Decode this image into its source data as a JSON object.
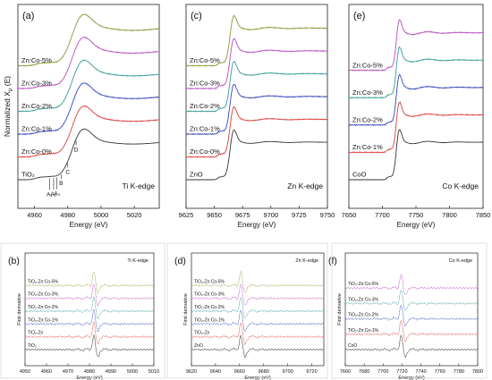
{
  "chart_data": [
    {
      "type": "line",
      "panel": "(a)",
      "edge_label": "Ti K-edge",
      "xlabel": "Energy (eV)",
      "ylabel": "Normalized X",
      "ylabel_sub": "μ",
      "ylabel_tail": "(E)",
      "xlim": [
        4950,
        5035
      ],
      "xticks": [
        4960,
        4980,
        5000,
        5020
      ],
      "edge": 4983,
      "spread": 6,
      "wiggle": 0.55,
      "step_from_bottom": 0.62,
      "peak_labels": [
        {
          "text": "A₁",
          "x": 4969,
          "series": "TiO₂"
        },
        {
          "text": "A₂",
          "x": 4971.5,
          "series": "TiO₂"
        },
        {
          "text": "A₃",
          "x": 4973.5,
          "series": "TiO₂"
        },
        {
          "text": "B",
          "x": 4976,
          "series": "TiO₂"
        },
        {
          "text": "C",
          "x": 4980,
          "series": "TiO₂"
        },
        {
          "text": "D",
          "x": 4985,
          "series": "TiO₂"
        }
      ],
      "series": [
        {
          "name": "TiO₂",
          "color": "#333333"
        },
        {
          "name": "Zn:Co-0%",
          "color": "#d8413d"
        },
        {
          "name": "Zn:Co-1%",
          "color": "#3447b7"
        },
        {
          "name": "Zn:Co-2%",
          "color": "#3a9a9a"
        },
        {
          "name": "Zn:Co-3%",
          "color": "#b84cc0"
        },
        {
          "name": "Zn:Co-5%",
          "color": "#8f9636"
        }
      ]
    },
    {
      "type": "line",
      "panel": "(c)",
      "edge_label": "Zn K-edge",
      "xlabel": "Energy (eV)",
      "xlim": [
        9625,
        9750
      ],
      "xticks": [
        9625,
        9650,
        9675,
        9700,
        9725,
        9750
      ],
      "edge": 9664,
      "spread": 3,
      "wiggle": 0.35,
      "series": [
        {
          "name": "ZnO",
          "color": "#333333"
        },
        {
          "name": "Zn:Co-0%",
          "color": "#d8413d"
        },
        {
          "name": "Zn:Co-1%",
          "color": "#3447b7"
        },
        {
          "name": "Zn:Co-2%",
          "color": "#3a9a9a"
        },
        {
          "name": "Zn:Co-3%",
          "color": "#b84cc0"
        },
        {
          "name": "Zn:Co-5%",
          "color": "#8f9636"
        }
      ]
    },
    {
      "type": "line",
      "panel": "(e)",
      "edge_label": "Co K-edge",
      "xlabel": "Energy (eV)",
      "xlim": [
        7650,
        7850
      ],
      "xticks": [
        7650,
        7700,
        7750,
        7800,
        7850
      ],
      "edge": 7721,
      "spread": 4,
      "wiggle": 0.45,
      "series": [
        {
          "name": "CoO",
          "color": "#333333"
        },
        {
          "name": "Zn:Co-1%",
          "color": "#d8413d"
        },
        {
          "name": "Zn:Co-2%",
          "color": "#3447b7"
        },
        {
          "name": "Zn:Co-3%",
          "color": "#3a9a9a"
        },
        {
          "name": "Zn:Co-5%",
          "color": "#b84cc0"
        }
      ]
    },
    {
      "type": "line",
      "panel": "(b)",
      "edge_label": "Ti K-edge",
      "xlabel": "Energy (eV)",
      "ylabel": "First derivative",
      "xlim": [
        4950,
        5010
      ],
      "xticks": [
        4950,
        4960,
        4970,
        4980,
        4990,
        5000,
        5010
      ],
      "edge": 4982,
      "series": [
        {
          "name": "TiO₂",
          "color": "#555555"
        },
        {
          "name": "TiO₂-Zn",
          "color": "#d8413d"
        },
        {
          "name": "TiO₂-Zn:Co-1%",
          "color": "#3447b7"
        },
        {
          "name": "TiO₂-Zn:Co-2%",
          "color": "#3a9a9a"
        },
        {
          "name": "TiO₂-Zn:Co-3%",
          "color": "#b84cc0"
        },
        {
          "name": "TiO₂-Zn:Co-5%",
          "color": "#9aa14a"
        }
      ]
    },
    {
      "type": "line",
      "panel": "(d)",
      "edge_label": "Zn K-edge",
      "xlabel": "Energy (eV)",
      "ylabel": "First derivative",
      "xlim": [
        9620,
        9730
      ],
      "xticks": [
        9620,
        9640,
        9660,
        9680,
        9700,
        9720
      ],
      "edge": 9661,
      "series": [
        {
          "name": "ZnO",
          "color": "#555555"
        },
        {
          "name": "TiO₂-Zn",
          "color": "#d8413d"
        },
        {
          "name": "TiO₂-Zn:Co-1%",
          "color": "#3447b7"
        },
        {
          "name": "TiO₂-Zn:Co-2%",
          "color": "#3a9a9a"
        },
        {
          "name": "TiO₂-Zn:Co-3%",
          "color": "#b84cc0"
        },
        {
          "name": "TiO₂-Zn:Co-5%",
          "color": "#9aa14a"
        }
      ]
    },
    {
      "type": "line",
      "panel": "(f)",
      "edge_label": "Co K-edge",
      "xlabel": "Energy (eV)",
      "ylabel": "First derivative",
      "xlim": [
        7660,
        7800
      ],
      "xticks": [
        7660,
        7680,
        7700,
        7720,
        7740,
        7760,
        7780,
        7800
      ],
      "edge": 7719,
      "series": [
        {
          "name": "CoO",
          "color": "#555555"
        },
        {
          "name": "TiO₂-Zn:Co-1%",
          "color": "#d8413d"
        },
        {
          "name": "TiO₂-Zn:Co-2%",
          "color": "#3447b7"
        },
        {
          "name": "TiO₂-Zn:Co-3%",
          "color": "#3a9a9a"
        },
        {
          "name": "TiO₂-Zn:Co-5%",
          "color": "#b84cc0"
        }
      ]
    }
  ]
}
